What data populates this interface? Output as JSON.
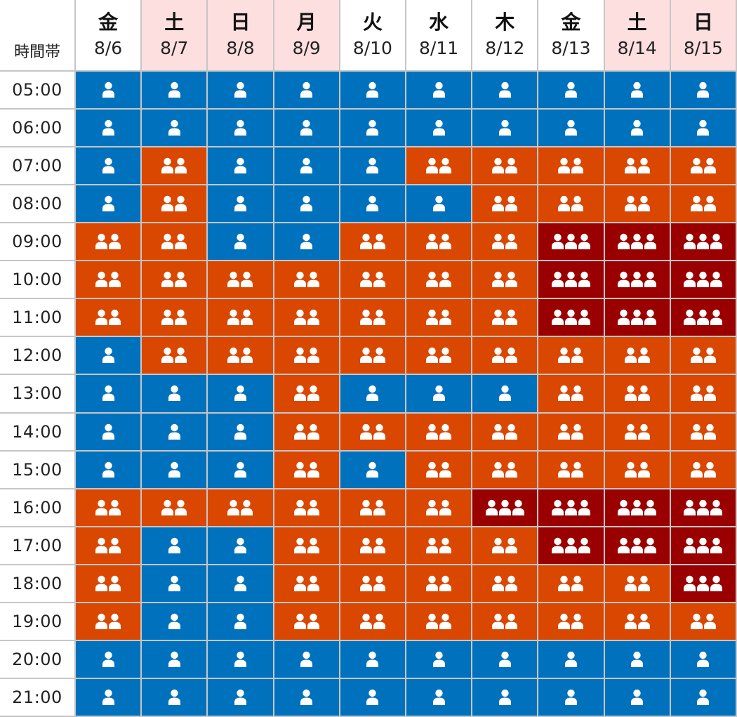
{
  "corner_label": "時間帯",
  "colors": {
    "grid_line": "#c6c6c6",
    "weekday_header_bg": "#ffffff",
    "weekend_header_bg": "#fddfe0",
    "level_1": "#0072bd",
    "level_2": "#d94700",
    "level_3": "#9b0000",
    "icon": "#ffffff"
  },
  "icon_name": "person-icon",
  "days": [
    {
      "dow": "金",
      "date": "8/6",
      "weekend": false
    },
    {
      "dow": "土",
      "date": "8/7",
      "weekend": true
    },
    {
      "dow": "日",
      "date": "8/8",
      "weekend": true
    },
    {
      "dow": "月",
      "date": "8/9",
      "weekend": true
    },
    {
      "dow": "火",
      "date": "8/10",
      "weekend": false
    },
    {
      "dow": "水",
      "date": "8/11",
      "weekend": false
    },
    {
      "dow": "木",
      "date": "8/12",
      "weekend": false
    },
    {
      "dow": "金",
      "date": "8/13",
      "weekend": false
    },
    {
      "dow": "土",
      "date": "8/14",
      "weekend": true
    },
    {
      "dow": "日",
      "date": "8/15",
      "weekend": true
    }
  ],
  "times": [
    "05:00",
    "06:00",
    "07:00",
    "08:00",
    "09:00",
    "10:00",
    "11:00",
    "12:00",
    "13:00",
    "14:00",
    "15:00",
    "16:00",
    "17:00",
    "18:00",
    "19:00",
    "20:00",
    "21:00"
  ],
  "levels": [
    [
      1,
      1,
      1,
      1,
      1,
      1,
      1,
      1,
      1,
      1
    ],
    [
      1,
      1,
      1,
      1,
      1,
      1,
      1,
      1,
      1,
      1
    ],
    [
      1,
      2,
      1,
      1,
      1,
      2,
      2,
      2,
      2,
      2
    ],
    [
      1,
      2,
      1,
      1,
      1,
      1,
      2,
      2,
      2,
      2
    ],
    [
      2,
      2,
      1,
      1,
      2,
      2,
      2,
      3,
      3,
      3
    ],
    [
      2,
      2,
      2,
      2,
      2,
      2,
      2,
      3,
      3,
      3
    ],
    [
      2,
      2,
      2,
      2,
      2,
      2,
      2,
      3,
      3,
      3
    ],
    [
      1,
      2,
      2,
      2,
      2,
      2,
      2,
      2,
      2,
      2
    ],
    [
      1,
      1,
      1,
      2,
      1,
      1,
      1,
      2,
      2,
      2
    ],
    [
      1,
      1,
      1,
      2,
      2,
      2,
      2,
      2,
      2,
      2
    ],
    [
      1,
      1,
      1,
      2,
      1,
      2,
      2,
      2,
      2,
      2
    ],
    [
      2,
      2,
      2,
      2,
      2,
      2,
      3,
      3,
      3,
      3
    ],
    [
      2,
      1,
      1,
      2,
      2,
      2,
      2,
      3,
      3,
      3
    ],
    [
      2,
      1,
      1,
      2,
      2,
      2,
      2,
      2,
      2,
      3
    ],
    [
      2,
      1,
      1,
      2,
      2,
      2,
      2,
      2,
      2,
      2
    ],
    [
      1,
      1,
      1,
      1,
      1,
      1,
      1,
      1,
      1,
      1
    ],
    [
      1,
      1,
      1,
      1,
      1,
      1,
      1,
      1,
      1,
      1
    ]
  ]
}
